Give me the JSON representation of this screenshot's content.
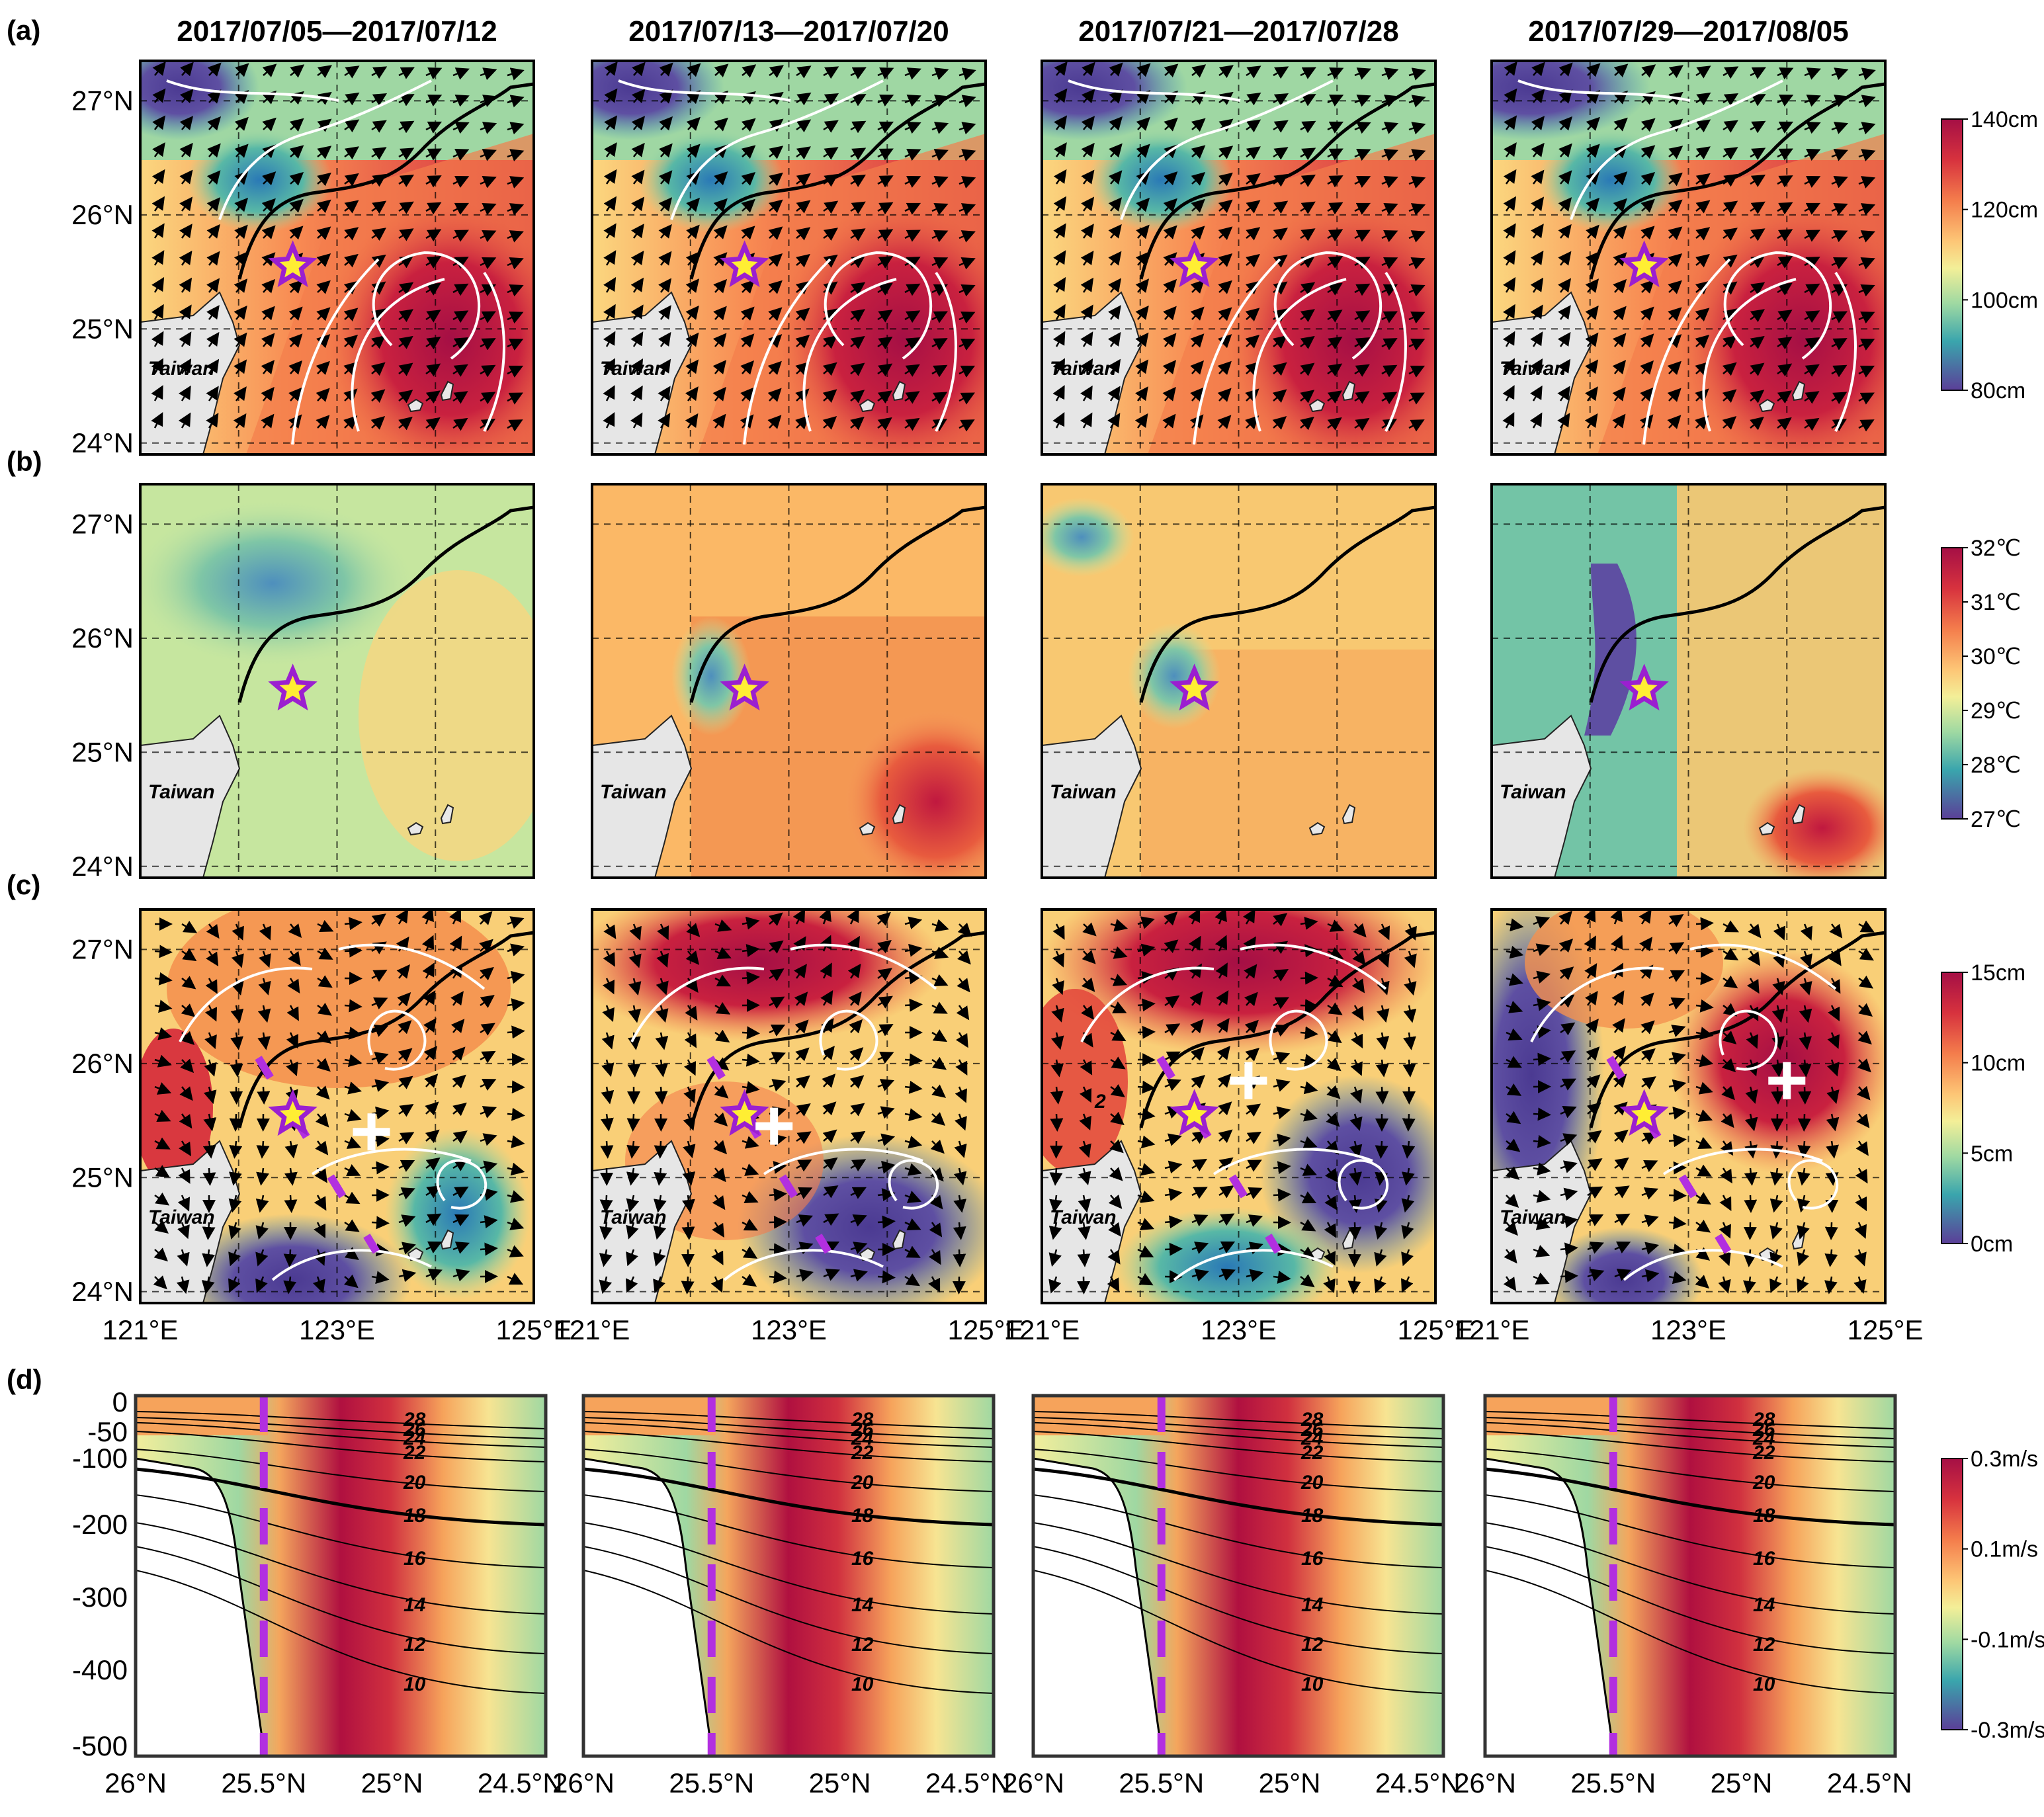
{
  "figure": {
    "panel_labels": [
      "(a)",
      "(b)",
      "(c)",
      "(d)"
    ],
    "period_titles": [
      "2017/07/05—2017/07/12",
      "2017/07/13—2017/07/20",
      "2017/07/21—2017/07/28",
      "2017/07/29—2017/08/05"
    ],
    "island_label": "Taiwan"
  },
  "colorbars": {
    "a": {
      "labels": [
        "140cm",
        "120cm",
        "100cm",
        "80cm"
      ],
      "range": [
        80,
        140
      ],
      "colors": [
        "#ab0a42",
        "#e9523c",
        "#fba85a",
        "#fbe68b",
        "#c4e79c",
        "#5fbda5",
        "#2f7fb8",
        "#5e4fa2"
      ]
    },
    "b": {
      "labels": [
        "32℃",
        "31℃",
        "30℃",
        "29℃",
        "28℃",
        "27℃"
      ],
      "range": [
        27,
        32
      ]
    },
    "c": {
      "labels": [
        "15cm",
        "10cm",
        "5cm",
        "0cm"
      ],
      "range": [
        0,
        15
      ]
    },
    "d": {
      "labels": [
        "0.3m/s",
        "0.1m/s",
        "-0.1m/s",
        "-0.3m/s"
      ],
      "range": [
        -0.3,
        0.3
      ]
    }
  },
  "chart_data": [
    {
      "type": "heatmap",
      "panel": "(a)",
      "variable": "sea level height with geostrophic current vectors and streamlines",
      "titles": [
        "2017/07/05—2017/07/12",
        "2017/07/13—2017/07/20",
        "2017/07/21—2017/07/28",
        "2017/07/29—2017/08/05"
      ],
      "xlim": [
        121,
        125
      ],
      "ylim": [
        24,
        27
      ],
      "xticklabels": [
        "121°E",
        "123°E",
        "125°E"
      ],
      "yticklabels": [
        "27°N",
        "26°N",
        "25°N",
        "24°N"
      ],
      "grid": true,
      "colorbar_range": [
        80,
        140
      ],
      "star_location": [
        122.55,
        25.55
      ]
    },
    {
      "type": "heatmap",
      "panel": "(b)",
      "variable": "sea surface temperature",
      "xlim": [
        121,
        125
      ],
      "ylim": [
        24,
        27
      ],
      "grid": true,
      "colorbar_range": [
        27,
        32
      ],
      "star_location": [
        122.55,
        25.55
      ]
    },
    {
      "type": "heatmap",
      "panel": "(c)",
      "variable": "sea level anomaly with current vectors and streamlines",
      "xlim": [
        121,
        125
      ],
      "ylim": [
        24,
        27
      ],
      "xticklabels": [
        "121°E",
        "123°E",
        "125°E"
      ],
      "grid": true,
      "colorbar_range": [
        0,
        15
      ],
      "star_location": [
        122.55,
        25.55
      ],
      "annotations": [
        "2"
      ]
    },
    {
      "type": "heatmap",
      "panel": "(d)",
      "variable": "cross-section velocity with temperature isotherms",
      "xlim": [
        26,
        24.4
      ],
      "xticklabels": [
        "26°N",
        "25.5°N",
        "25°N",
        "24.5°N"
      ],
      "ylim": [
        -500,
        0
      ],
      "yticklabels": [
        "0",
        "-50",
        "-100",
        "-200",
        "-300",
        "-400",
        "-500"
      ],
      "colorbar_range": [
        -0.3,
        0.3
      ],
      "isotherm_labels": [
        28,
        26,
        24,
        22,
        20,
        18,
        16,
        14,
        12,
        10
      ],
      "dashed_marker_latitude": 25.5
    }
  ]
}
